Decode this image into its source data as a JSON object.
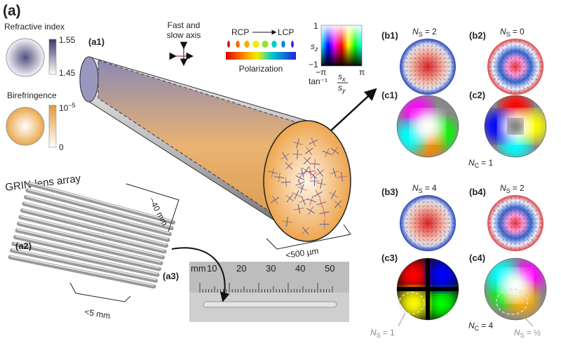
{
  "figure_label": "(a)",
  "refractive_index": {
    "title": "Refractive index",
    "max": "1.55",
    "min": "1.45"
  },
  "birefringence": {
    "title": "Birefringence",
    "max": {
      "base": "10",
      "exp": "−5"
    },
    "min": "0"
  },
  "panel_a1": {
    "label": "(a1)"
  },
  "axes_legend": {
    "line1": "Fast and",
    "line2": "slow axis"
  },
  "polarization_legend": {
    "from": "RCP",
    "to": "LCP",
    "title": "Polarization"
  },
  "colormap_legend": {
    "y_label": {
      "symbol": "s",
      "sub": "z"
    },
    "y_max": "1",
    "y_min": "−1",
    "x_min": "−π",
    "x_max": "π",
    "x_label": {
      "func": "tan⁻¹",
      "num": {
        "symbol": "s",
        "sub": "x"
      },
      "den": {
        "symbol": "s",
        "sub": "y"
      }
    }
  },
  "panel_a2": {
    "label": "(a2)",
    "title": "GRIN-lens array",
    "length": "~40 mm",
    "width": "<5 mm"
  },
  "diameter": "<500 µm",
  "panel_a3": {
    "label": "(a3)",
    "ruler": [
      "mm",
      "10",
      "20",
      "30",
      "40",
      "50"
    ]
  },
  "panels": [
    {
      "label": "(b1)",
      "annotation": {
        "symbol": "N",
        "sub": "S",
        "text": "= 2"
      }
    },
    {
      "label": "(b2)",
      "annotation": {
        "symbol": "N",
        "sub": "S",
        "text": "= 0"
      }
    },
    {
      "label": "(c1)"
    },
    {
      "label": "(c2)"
    },
    {
      "label": "(b3)",
      "annotation": {
        "symbol": "N",
        "sub": "S",
        "text": "= 4"
      }
    },
    {
      "label": "(b4)",
      "annotation": {
        "symbol": "N",
        "sub": "S",
        "text": "= 2"
      }
    },
    {
      "label": "(c3)"
    },
    {
      "label": "(c4)"
    }
  ],
  "annotations": [
    {
      "symbol": "N",
      "sub": "C",
      "text": "= 1"
    },
    {
      "symbol": "N",
      "sub": "C",
      "text": "= 4"
    },
    {
      "symbol": "N",
      "sub": "S",
      "text": "= 1"
    },
    {
      "symbol": "N",
      "sub": "S",
      "text": "= ½"
    }
  ]
}
